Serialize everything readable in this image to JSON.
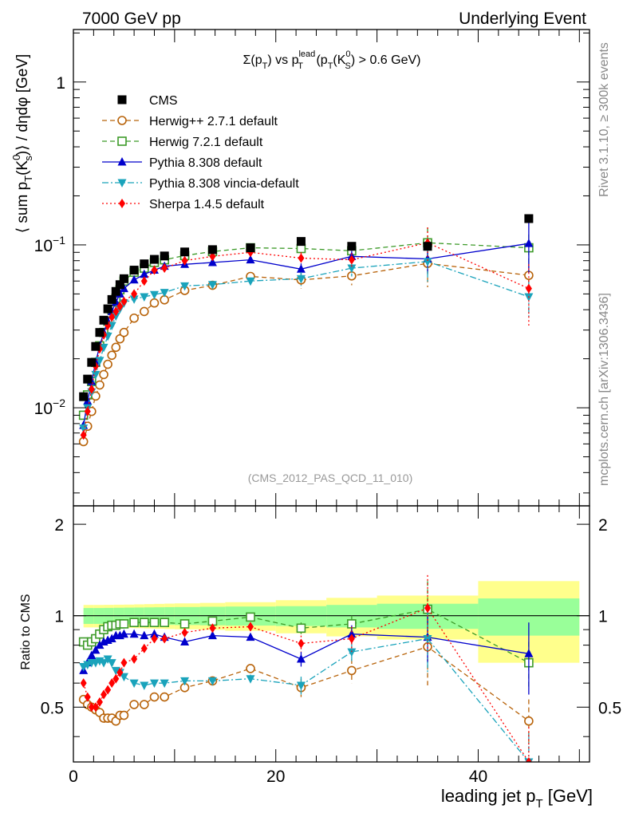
{
  "header": {
    "left": "7000 GeV pp",
    "right": "Underlying Event"
  },
  "side_labels": {
    "rivet": "Rivet 3.1.10, ≥ 300k events",
    "mcplots": "mcplots.cern.ch [arXiv:1306.3436]"
  },
  "chart_data": {
    "type": "scatter",
    "title_parts": {
      "a": "Σ(p",
      "b": "T",
      "c": ") vs p",
      "d_sup": "lead",
      "d_sub": "T",
      "e": " (p",
      "f": "T",
      "g": "(K",
      "h_sup": "0",
      "h_sub": "S",
      "i": ") > 0.6 GeV)"
    },
    "analysis_tag": "(CMS_2012_PAS_QCD_11_010)",
    "ylabel_parts": {
      "a": "⟨ sum p",
      "b": "T",
      "c": "(K",
      "d_sup": "0",
      "d_sub": "s",
      "e": ")⟩ / dηdφ [GeV]"
    },
    "xlabel_parts": {
      "a": "leading jet p",
      "b": "T",
      "c": " [GeV]"
    },
    "ratio_ylabel": "Ratio to CMS",
    "xlim": [
      0,
      51
    ],
    "ylim": [
      0.0025,
      2.1
    ],
    "yscale": "log",
    "ratio_ylim": [
      0.33,
      2.3
    ],
    "x_ticks": [
      0,
      20,
      40
    ],
    "y_tick_labels": [
      {
        "value": 1,
        "mant": "1",
        "exp": ""
      },
      {
        "value": 0.1,
        "mant": "10",
        "exp": "−1"
      },
      {
        "value": 0.01,
        "mant": "10",
        "exp": "−2"
      }
    ],
    "ratio_ticks": [
      0.5,
      1,
      2
    ],
    "legend_position": "top-left",
    "x": [
      1.0,
      1.4,
      1.8,
      2.2,
      2.6,
      3.0,
      3.4,
      3.8,
      4.2,
      4.6,
      5.0,
      6.0,
      7.0,
      8.0,
      9.0,
      11.0,
      13.75,
      17.5,
      22.5,
      27.5,
      35.0,
      45.0
    ],
    "series": [
      {
        "name": "CMS",
        "style": "data",
        "color": "#000000",
        "values": [
          0.0117,
          0.015,
          0.019,
          0.0238,
          0.029,
          0.0345,
          0.0405,
          0.0462,
          0.0518,
          0.057,
          0.062,
          0.07,
          0.0765,
          0.0815,
          0.0855,
          0.0905,
          0.0935,
          0.096,
          0.105,
          0.098,
          0.098,
          0.145
        ],
        "band_edges": [
          1,
          2,
          3,
          4,
          5,
          6,
          7,
          8,
          9,
          10,
          12.5,
          15,
          20,
          25,
          30,
          40,
          50
        ],
        "band_green": [
          0.06,
          0.06,
          0.061,
          0.062,
          0.063,
          0.064,
          0.065,
          0.066,
          0.067,
          0.068,
          0.07,
          0.072,
          0.075,
          0.085,
          0.095,
          0.14
        ],
        "band_yellow": [
          0.085,
          0.085,
          0.086,
          0.087,
          0.088,
          0.09,
          0.092,
          0.094,
          0.096,
          0.098,
          0.102,
          0.108,
          0.125,
          0.145,
          0.165,
          0.3
        ]
      },
      {
        "name": "Herwig++ 2.7.1 default",
        "style": "open-circle",
        "color": "#b8630a",
        "line": "dashed",
        "values": [
          0.0062,
          0.0077,
          0.0095,
          0.0118,
          0.0138,
          0.016,
          0.0185,
          0.021,
          0.0235,
          0.0265,
          0.029,
          0.0355,
          0.039,
          0.044,
          0.046,
          0.0525,
          0.0565,
          0.064,
          0.061,
          0.0645,
          0.077,
          0.065
        ],
        "errors": [
          0,
          0,
          0,
          0,
          0,
          0,
          0,
          0,
          0,
          0,
          0,
          0,
          0,
          0,
          0,
          0,
          0,
          0.003,
          0.007,
          0.008,
          0.022,
          0.012
        ],
        "ratio": [
          0.53,
          0.51,
          0.5,
          0.49,
          0.48,
          0.46,
          0.46,
          0.46,
          0.45,
          0.47,
          0.47,
          0.51,
          0.51,
          0.54,
          0.54,
          0.58,
          0.61,
          0.67,
          0.58,
          0.66,
          0.79,
          0.45
        ],
        "ratio_errors": [
          0,
          0,
          0,
          0,
          0,
          0,
          0,
          0,
          0,
          0,
          0,
          0,
          0,
          0,
          0,
          0,
          0,
          0.02,
          0.04,
          0.06,
          0.2,
          0.08
        ]
      },
      {
        "name": "Herwig 7.2.1 default",
        "style": "open-square",
        "color": "#3c9a28",
        "line": "dashed",
        "values": [
          0.009,
          0.012,
          0.0145,
          0.019,
          0.024,
          0.029,
          0.034,
          0.04,
          0.047,
          0.053,
          0.06,
          0.068,
          0.072,
          0.078,
          0.081,
          0.086,
          0.091,
          0.096,
          0.095,
          0.092,
          0.103,
          0.096
        ],
        "errors": [
          0,
          0,
          0,
          0,
          0,
          0,
          0,
          0,
          0,
          0,
          0,
          0,
          0,
          0,
          0,
          0,
          0,
          0.003,
          0.006,
          0.008,
          0.025,
          0.02
        ],
        "ratio": [
          0.82,
          0.8,
          0.82,
          0.84,
          0.87,
          0.9,
          0.92,
          0.93,
          0.93,
          0.94,
          0.94,
          0.95,
          0.95,
          0.95,
          0.95,
          0.94,
          0.96,
          0.99,
          0.91,
          0.94,
          1.05,
          0.7
        ],
        "ratio_errors": [
          0,
          0,
          0,
          0,
          0,
          0,
          0,
          0,
          0,
          0,
          0,
          0,
          0,
          0,
          0,
          0,
          0,
          0.02,
          0.04,
          0.06,
          0.25,
          0.12
        ]
      },
      {
        "name": "Pythia 8.308 default",
        "style": "filled-up-triangle",
        "color": "#0000cc",
        "line": "solid",
        "values": [
          0.0078,
          0.011,
          0.0145,
          0.019,
          0.024,
          0.029,
          0.034,
          0.039,
          0.0445,
          0.05,
          0.054,
          0.061,
          0.066,
          0.07,
          0.074,
          0.076,
          0.078,
          0.081,
          0.071,
          0.085,
          0.082,
          0.102
        ],
        "errors": [
          0,
          0,
          0,
          0,
          0,
          0,
          0,
          0,
          0,
          0,
          0,
          0,
          0,
          0,
          0,
          0,
          0,
          0.003,
          0.006,
          0.007,
          0.015,
          0.035
        ],
        "ratio": [
          0.66,
          0.7,
          0.74,
          0.77,
          0.8,
          0.82,
          0.83,
          0.84,
          0.86,
          0.86,
          0.87,
          0.87,
          0.86,
          0.87,
          0.85,
          0.82,
          0.86,
          0.85,
          0.72,
          0.87,
          0.85,
          0.75
        ],
        "ratio_errors": [
          0,
          0,
          0,
          0,
          0,
          0,
          0,
          0,
          0,
          0,
          0,
          0,
          0,
          0,
          0,
          0,
          0,
          0.02,
          0.04,
          0.06,
          0.15,
          0.2
        ]
      },
      {
        "name": "Pythia 8.308 vincia-default",
        "style": "filled-down-triangle",
        "color": "#1aa3bb",
        "line": "dash-dot",
        "values": [
          0.0075,
          0.01,
          0.0125,
          0.016,
          0.0195,
          0.0235,
          0.0275,
          0.032,
          0.0365,
          0.0405,
          0.044,
          0.0465,
          0.048,
          0.0495,
          0.051,
          0.056,
          0.057,
          0.06,
          0.062,
          0.072,
          0.079,
          0.048
        ],
        "errors": [
          0,
          0,
          0,
          0,
          0,
          0,
          0,
          0,
          0,
          0,
          0,
          0,
          0,
          0,
          0,
          0,
          0,
          0.003,
          0.006,
          0.008,
          0.02,
          0.012
        ],
        "ratio": [
          0.68,
          0.69,
          0.7,
          0.7,
          0.71,
          0.7,
          0.72,
          0.7,
          0.66,
          0.65,
          0.63,
          0.6,
          0.59,
          0.6,
          0.6,
          0.61,
          0.61,
          0.62,
          0.59,
          0.76,
          0.84,
          0.33
        ],
        "ratio_errors": [
          0,
          0,
          0,
          0,
          0,
          0,
          0,
          0,
          0,
          0,
          0,
          0,
          0,
          0,
          0,
          0,
          0,
          0.02,
          0.04,
          0.06,
          0.2,
          0.08
        ]
      },
      {
        "name": "Sherpa 1.4.5 default",
        "style": "filled-diamond",
        "color": "#ff0000",
        "line": "dotted",
        "values": [
          0.0068,
          0.0095,
          0.013,
          0.018,
          0.023,
          0.028,
          0.032,
          0.036,
          0.039,
          0.042,
          0.045,
          0.05,
          0.06,
          0.07,
          0.072,
          0.08,
          0.085,
          0.09,
          0.083,
          0.081,
          0.103,
          0.054
        ],
        "errors": [
          0,
          0,
          0,
          0,
          0,
          0,
          0,
          0,
          0,
          0,
          0,
          0,
          0,
          0,
          0,
          0,
          0,
          0.003,
          0.007,
          0.008,
          0.025,
          0.022
        ],
        "ratio": [
          0.6,
          0.54,
          0.5,
          0.5,
          0.52,
          0.55,
          0.57,
          0.6,
          0.62,
          0.65,
          0.7,
          0.72,
          0.78,
          0.84,
          0.84,
          0.88,
          0.91,
          0.92,
          0.81,
          0.84,
          1.06,
          0.33
        ],
        "ratio_errors": [
          0,
          0,
          0,
          0,
          0,
          0,
          0,
          0,
          0,
          0,
          0,
          0,
          0,
          0,
          0,
          0,
          0,
          0.03,
          0.05,
          0.08,
          0.3,
          0.1
        ]
      }
    ]
  }
}
